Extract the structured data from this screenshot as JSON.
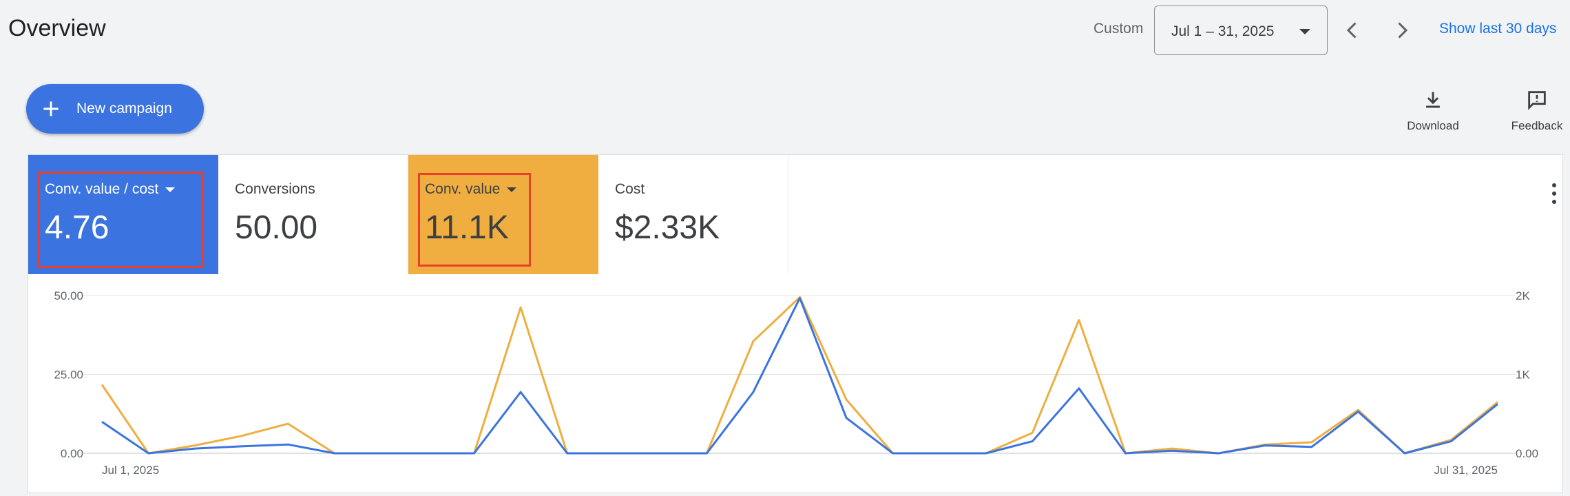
{
  "header": {
    "title": "Overview",
    "date_range_label": "Custom",
    "date_range_value": "Jul 1 – 31, 2025",
    "show_last_link": "Show last 30 days"
  },
  "toolbar": {
    "new_campaign_label": "New campaign",
    "download_label": "Download",
    "feedback_label": "Feedback"
  },
  "scorecards": [
    {
      "label": "Conv. value / cost",
      "value": "4.76",
      "selected": true,
      "color": "#3b74e0",
      "has_dropdown": true
    },
    {
      "label": "Conversions",
      "value": "50.00",
      "selected": false,
      "has_dropdown": false
    },
    {
      "label": "Conv. value",
      "value": "11.1K",
      "selected": true,
      "color": "#efae3f",
      "has_dropdown": true
    },
    {
      "label": "Cost",
      "value": "$2.33K",
      "selected": false,
      "has_dropdown": false
    }
  ],
  "colors": {
    "accent_blue": "#3b74e0",
    "accent_orange": "#efae3f",
    "link": "#1a73e8",
    "annotation_red": "#e8402b"
  },
  "chart_data": {
    "type": "line",
    "x": [
      "Jul 1, 2025",
      "Jul 2, 2025",
      "Jul 3, 2025",
      "Jul 4, 2025",
      "Jul 5, 2025",
      "Jul 6, 2025",
      "Jul 7, 2025",
      "Jul 8, 2025",
      "Jul 9, 2025",
      "Jul 10, 2025",
      "Jul 11, 2025",
      "Jul 12, 2025",
      "Jul 13, 2025",
      "Jul 14, 2025",
      "Jul 15, 2025",
      "Jul 16, 2025",
      "Jul 17, 2025",
      "Jul 18, 2025",
      "Jul 19, 2025",
      "Jul 20, 2025",
      "Jul 21, 2025",
      "Jul 22, 2025",
      "Jul 23, 2025",
      "Jul 24, 2025",
      "Jul 25, 2025",
      "Jul 26, 2025",
      "Jul 27, 2025",
      "Jul 28, 2025",
      "Jul 29, 2025",
      "Jul 30, 2025",
      "Jul 31, 2025"
    ],
    "x_tick_labels": [
      "Jul 1, 2025",
      "Jul 31, 2025"
    ],
    "series": [
      {
        "name": "Conv. value / cost",
        "axis": "left",
        "color": "#3b74e0",
        "values": [
          10,
          0,
          1.5,
          2.2,
          2.8,
          0,
          0,
          0,
          0,
          19.4,
          0,
          0,
          0,
          0,
          19.4,
          49.2,
          11.2,
          0,
          0,
          0,
          3.8,
          20.6,
          0,
          0.8,
          0,
          2.5,
          2,
          13.2,
          0,
          3.8,
          15.6
        ]
      },
      {
        "name": "Conv. value",
        "axis": "right",
        "color": "#efae3f",
        "values": [
          870,
          0,
          100,
          220,
          375,
          0,
          0,
          0,
          0,
          1850,
          0,
          0,
          0,
          0,
          1420,
          1980,
          680,
          0,
          0,
          0,
          260,
          1690,
          0,
          60,
          0,
          110,
          140,
          550,
          0,
          170,
          650
        ]
      }
    ],
    "y_left": {
      "ticks": [
        "0.00",
        "25.00",
        "50.00"
      ],
      "range": [
        0,
        50
      ]
    },
    "y_right": {
      "ticks": [
        "0.00",
        "1K",
        "2K"
      ],
      "range": [
        0,
        2000
      ]
    },
    "grid": true,
    "legend": "none"
  }
}
